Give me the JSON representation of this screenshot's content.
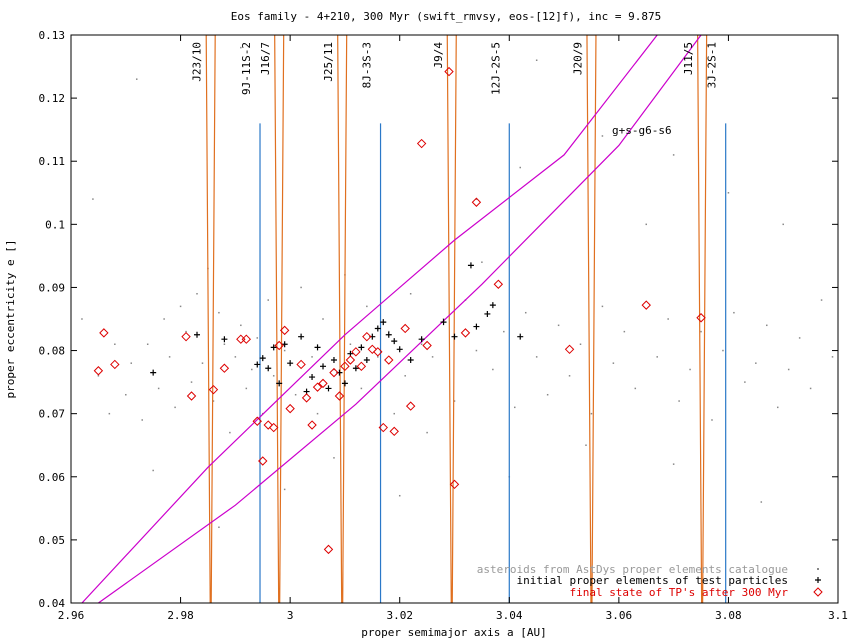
{
  "chart_data": {
    "type": "scatter",
    "title": "Eos family - 4+210, 300 Myr (swift_rmvsy, eos-[12]f), inc = 9.875",
    "xlabel": "proper semimajor axis a [AU]",
    "ylabel": "proper eccentricity e []",
    "xlim": [
      2.96,
      3.1
    ],
    "ylim": [
      0.04,
      0.13
    ],
    "xticks": [
      "2.96",
      "2.98",
      "3",
      "3.02",
      "3.04",
      "3.06",
      "3.08",
      "3.1"
    ],
    "yticks": [
      "0.04",
      "0.05",
      "0.06",
      "0.07",
      "0.08",
      "0.09",
      "0.1",
      "0.11",
      "0.12",
      "0.13"
    ],
    "xtick_values": [
      2.96,
      2.98,
      3.0,
      3.02,
      3.04,
      3.06,
      3.08,
      3.1
    ],
    "ytick_values": [
      0.04,
      0.05,
      0.06,
      0.07,
      0.08,
      0.09,
      0.1,
      0.11,
      0.12,
      0.13
    ],
    "colors": {
      "background_dots": "#888888",
      "initial": "#000000",
      "final": "#dd0000",
      "resonance_orange": "#e07020",
      "resonance_blue": "#2a78c8",
      "secular_magenta": "#cc00cc"
    },
    "orange_resonances": [
      {
        "label": "J23/10",
        "a": 2.9855
      },
      {
        "label": "J16/7",
        "a": 2.998
      },
      {
        "label": "J25/11",
        "a": 3.0095
      },
      {
        "label": "J9/4",
        "a": 3.0295
      },
      {
        "label": "J20/9",
        "a": 3.055
      },
      {
        "label": "J11/5",
        "a": 3.0752
      }
    ],
    "blue_resonances": [
      {
        "label": "9J-11S-2",
        "a": 2.9945
      },
      {
        "label": "8J-3S-3",
        "a": 3.0165
      },
      {
        "label": "12J-2S-5",
        "a": 3.04
      },
      {
        "label": "3J-2S-1",
        "a": 3.0795
      }
    ],
    "secular_label": "g+s-g6-s6",
    "secular_lines": [
      {
        "points": [
          [
            2.962,
            0.04
          ],
          [
            2.985,
            0.0615
          ],
          [
            3.01,
            0.0825
          ],
          [
            3.03,
            0.0975
          ],
          [
            3.05,
            0.111
          ],
          [
            3.067,
            0.13
          ]
        ]
      },
      {
        "points": [
          [
            2.965,
            0.04
          ],
          [
            2.99,
            0.0555
          ],
          [
            3.012,
            0.0715
          ],
          [
            3.035,
            0.0905
          ],
          [
            3.06,
            0.1125
          ],
          [
            3.075,
            0.13
          ]
        ]
      }
    ],
    "legend": {
      "position": "bottom-right",
      "entries": [
        {
          "label": "asteroids from AstDys proper elements catalogue",
          "marker": "dot"
        },
        {
          "label": "initial proper elements of test particles",
          "marker": "plus"
        },
        {
          "label": "final state of TP's after 300 Myr",
          "marker": "diamond"
        }
      ]
    },
    "series": [
      {
        "name": "asteroids from AstDys proper elements catalogue",
        "marker": "dot",
        "points": [
          [
            2.962,
            0.085
          ],
          [
            2.964,
            0.104
          ],
          [
            2.965,
            0.076
          ],
          [
            2.967,
            0.07
          ],
          [
            2.968,
            0.081
          ],
          [
            2.97,
            0.073
          ],
          [
            2.971,
            0.078
          ],
          [
            2.972,
            0.123
          ],
          [
            2.973,
            0.069
          ],
          [
            2.974,
            0.081
          ],
          [
            2.976,
            0.074
          ],
          [
            2.977,
            0.085
          ],
          [
            2.978,
            0.079
          ],
          [
            2.979,
            0.071
          ],
          [
            2.98,
            0.087
          ],
          [
            2.981,
            0.083
          ],
          [
            2.982,
            0.075
          ],
          [
            2.983,
            0.089
          ],
          [
            2.984,
            0.078
          ],
          [
            2.985,
            0.093
          ],
          [
            2.986,
            0.072
          ],
          [
            2.987,
            0.086
          ],
          [
            2.988,
            0.081
          ],
          [
            2.989,
            0.067
          ],
          [
            2.99,
            0.079
          ],
          [
            2.991,
            0.084
          ],
          [
            2.992,
            0.074
          ],
          [
            2.993,
            0.077
          ],
          [
            2.994,
            0.082
          ],
          [
            2.995,
            0.07
          ],
          [
            2.996,
            0.088
          ],
          [
            2.997,
            0.076
          ],
          [
            2.999,
            0.08
          ],
          [
            3.001,
            0.073
          ],
          [
            3.002,
            0.09
          ],
          [
            3.004,
            0.079
          ],
          [
            3.005,
            0.07
          ],
          [
            3.006,
            0.085
          ],
          [
            3.008,
            0.077
          ],
          [
            3.01,
            0.092
          ],
          [
            3.011,
            0.081
          ],
          [
            3.013,
            0.074
          ],
          [
            3.014,
            0.087
          ],
          [
            3.016,
            0.079
          ],
          [
            3.018,
            0.083
          ],
          [
            3.019,
            0.07
          ],
          [
            3.021,
            0.076
          ],
          [
            3.022,
            0.089
          ],
          [
            3.024,
            0.081
          ],
          [
            3.025,
            0.067
          ],
          [
            3.026,
            0.079
          ],
          [
            3.028,
            0.085
          ],
          [
            3.03,
            0.072
          ],
          [
            3.032,
            0.088
          ],
          [
            3.034,
            0.08
          ],
          [
            3.035,
            0.094
          ],
          [
            3.037,
            0.077
          ],
          [
            3.039,
            0.083
          ],
          [
            3.041,
            0.071
          ],
          [
            3.043,
            0.086
          ],
          [
            3.045,
            0.079
          ],
          [
            3.047,
            0.073
          ],
          [
            3.049,
            0.084
          ],
          [
            3.051,
            0.076
          ],
          [
            3.053,
            0.081
          ],
          [
            3.055,
            0.07
          ],
          [
            3.057,
            0.087
          ],
          [
            3.059,
            0.078
          ],
          [
            3.061,
            0.083
          ],
          [
            3.063,
            0.074
          ],
          [
            3.065,
            0.1
          ],
          [
            3.067,
            0.079
          ],
          [
            3.069,
            0.085
          ],
          [
            3.071,
            0.072
          ],
          [
            3.073,
            0.077
          ],
          [
            3.075,
            0.083
          ],
          [
            3.077,
            0.069
          ],
          [
            3.079,
            0.08
          ],
          [
            3.081,
            0.086
          ],
          [
            3.083,
            0.075
          ],
          [
            3.085,
            0.078
          ],
          [
            3.087,
            0.084
          ],
          [
            3.089,
            0.071
          ],
          [
            3.091,
            0.077
          ],
          [
            3.093,
            0.082
          ],
          [
            3.095,
            0.074
          ],
          [
            3.097,
            0.088
          ],
          [
            3.099,
            0.079
          ],
          [
            2.975,
            0.061
          ],
          [
            2.987,
            0.052
          ],
          [
            2.999,
            0.058
          ],
          [
            3.008,
            0.063
          ],
          [
            3.02,
            0.057
          ],
          [
            3.04,
            0.06
          ],
          [
            3.054,
            0.065
          ],
          [
            3.07,
            0.062
          ],
          [
            3.086,
            0.056
          ],
          [
            2.991,
            0.128
          ],
          [
            3.045,
            0.126
          ],
          [
            3.057,
            0.114
          ],
          [
            3.07,
            0.111
          ],
          [
            3.08,
            0.105
          ],
          [
            3.09,
            0.1
          ],
          [
            3.034,
            0.104
          ],
          [
            3.042,
            0.109
          ]
        ]
      },
      {
        "name": "initial proper elements of test particles",
        "marker": "plus",
        "points": [
          [
            2.975,
            0.0765
          ],
          [
            2.983,
            0.0825
          ],
          [
            2.988,
            0.0818
          ],
          [
            2.994,
            0.0778
          ],
          [
            2.995,
            0.0788
          ],
          [
            2.996,
            0.0772
          ],
          [
            2.997,
            0.0805
          ],
          [
            2.998,
            0.0748
          ],
          [
            2.999,
            0.081
          ],
          [
            3.0,
            0.078
          ],
          [
            3.002,
            0.0822
          ],
          [
            3.003,
            0.0735
          ],
          [
            3.004,
            0.0758
          ],
          [
            3.005,
            0.0805
          ],
          [
            3.006,
            0.0775
          ],
          [
            3.007,
            0.074
          ],
          [
            3.008,
            0.0785
          ],
          [
            3.009,
            0.0765
          ],
          [
            3.01,
            0.0748
          ],
          [
            3.011,
            0.0795
          ],
          [
            3.012,
            0.0772
          ],
          [
            3.013,
            0.0805
          ],
          [
            3.014,
            0.0785
          ],
          [
            3.015,
            0.0822
          ],
          [
            3.016,
            0.0835
          ],
          [
            3.017,
            0.0845
          ],
          [
            3.018,
            0.0825
          ],
          [
            3.019,
            0.0815
          ],
          [
            3.02,
            0.0802
          ],
          [
            3.022,
            0.0785
          ],
          [
            3.024,
            0.0818
          ],
          [
            3.028,
            0.0845
          ],
          [
            3.03,
            0.0822
          ],
          [
            3.033,
            0.0935
          ],
          [
            3.034,
            0.0838
          ],
          [
            3.036,
            0.0858
          ],
          [
            3.037,
            0.0872
          ],
          [
            3.042,
            0.0822
          ]
        ]
      },
      {
        "name": "final state of TP's after 300 Myr",
        "marker": "diamond",
        "points": [
          [
            2.965,
            0.0768
          ],
          [
            2.966,
            0.0828
          ],
          [
            2.968,
            0.0778
          ],
          [
            2.981,
            0.0822
          ],
          [
            2.982,
            0.0728
          ],
          [
            2.986,
            0.0738
          ],
          [
            2.988,
            0.0772
          ],
          [
            2.991,
            0.0818
          ],
          [
            2.992,
            0.0818
          ],
          [
            2.994,
            0.0688
          ],
          [
            2.995,
            0.0625
          ],
          [
            2.996,
            0.0682
          ],
          [
            2.997,
            0.0678
          ],
          [
            2.998,
            0.0808
          ],
          [
            2.999,
            0.0832
          ],
          [
            3.0,
            0.0708
          ],
          [
            3.002,
            0.0778
          ],
          [
            3.003,
            0.0725
          ],
          [
            3.004,
            0.0682
          ],
          [
            3.005,
            0.0742
          ],
          [
            3.006,
            0.0748
          ],
          [
            3.007,
            0.0485
          ],
          [
            3.008,
            0.0765
          ],
          [
            3.009,
            0.0728
          ],
          [
            3.01,
            0.0775
          ],
          [
            3.011,
            0.0785
          ],
          [
            3.012,
            0.0798
          ],
          [
            3.013,
            0.0775
          ],
          [
            3.014,
            0.0822
          ],
          [
            3.015,
            0.0802
          ],
          [
            3.016,
            0.0798
          ],
          [
            3.017,
            0.0678
          ],
          [
            3.018,
            0.0785
          ],
          [
            3.019,
            0.0672
          ],
          [
            3.021,
            0.0835
          ],
          [
            3.022,
            0.0712
          ],
          [
            3.024,
            0.1128
          ],
          [
            3.025,
            0.0808
          ],
          [
            3.029,
            0.1242
          ],
          [
            3.03,
            0.0588
          ],
          [
            3.032,
            0.0828
          ],
          [
            3.034,
            0.1035
          ],
          [
            3.038,
            0.0905
          ],
          [
            3.051,
            0.0802
          ],
          [
            3.065,
            0.0872
          ],
          [
            3.075,
            0.0852
          ]
        ]
      }
    ]
  }
}
